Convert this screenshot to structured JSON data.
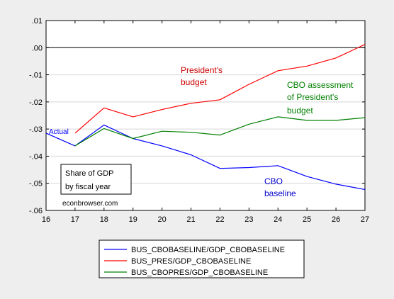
{
  "chart_data": {
    "type": "line",
    "x": [
      16,
      17,
      18,
      19,
      20,
      21,
      22,
      23,
      24,
      25,
      26,
      27
    ],
    "x_ticks": [
      "16",
      "17",
      "18",
      "19",
      "20",
      "21",
      "22",
      "23",
      "24",
      "25",
      "26",
      "27"
    ],
    "xlim": [
      16,
      27
    ],
    "ylim": [
      -0.06,
      0.01
    ],
    "y_ticks": [
      0.01,
      0.0,
      -0.01,
      -0.02,
      -0.03,
      -0.04,
      -0.05,
      -0.06
    ],
    "y_tick_labels": [
      ".01",
      ".00",
      "-.01",
      "-.02",
      "-.03",
      "-.04",
      "-.05",
      "-.06"
    ],
    "zero_line": true,
    "grid": "horizontal",
    "series": [
      {
        "name": "BUS_CBOBASELINE/GDP_CBOBASELINE",
        "color": "#0000ff",
        "x": [
          16,
          17,
          18,
          19,
          20,
          21,
          22,
          23,
          24,
          25,
          26,
          27
        ],
        "values": [
          -0.0315,
          -0.0362,
          -0.0285,
          -0.0335,
          -0.0362,
          -0.0395,
          -0.0445,
          -0.0442,
          -0.0435,
          -0.0475,
          -0.0503,
          -0.0523
        ]
      },
      {
        "name": "BUS_PRES/GDP_CBOBASELINE",
        "color": "#ff0000",
        "x": [
          17,
          18,
          19,
          20,
          21,
          22,
          23,
          24,
          25,
          26,
          27
        ],
        "values": [
          -0.0315,
          -0.0222,
          -0.0255,
          -0.0228,
          -0.0205,
          -0.0192,
          -0.0135,
          -0.0085,
          -0.0068,
          -0.0038,
          0.0012
        ]
      },
      {
        "name": "BUS_CBOPRES/GDP_CBOBASELINE",
        "color": "#008000",
        "x": [
          17,
          18,
          19,
          20,
          21,
          22,
          23,
          24,
          25,
          26,
          27
        ],
        "values": [
          -0.0362,
          -0.0298,
          -0.0335,
          -0.0308,
          -0.0312,
          -0.0322,
          -0.0282,
          -0.0255,
          -0.0268,
          -0.0268,
          -0.0258
        ]
      }
    ],
    "annotations": {
      "actual": "Actual",
      "presidents_budget": [
        "President's",
        "budget"
      ],
      "cbo_assessment": [
        "CBO assessment",
        "of President's",
        "budget"
      ],
      "cbo_baseline": [
        "CBO",
        "baseline"
      ],
      "box_note": [
        "Share of GDP",
        "by fiscal year"
      ],
      "source": "econbrowser.com"
    },
    "legend_position": "bottom"
  }
}
